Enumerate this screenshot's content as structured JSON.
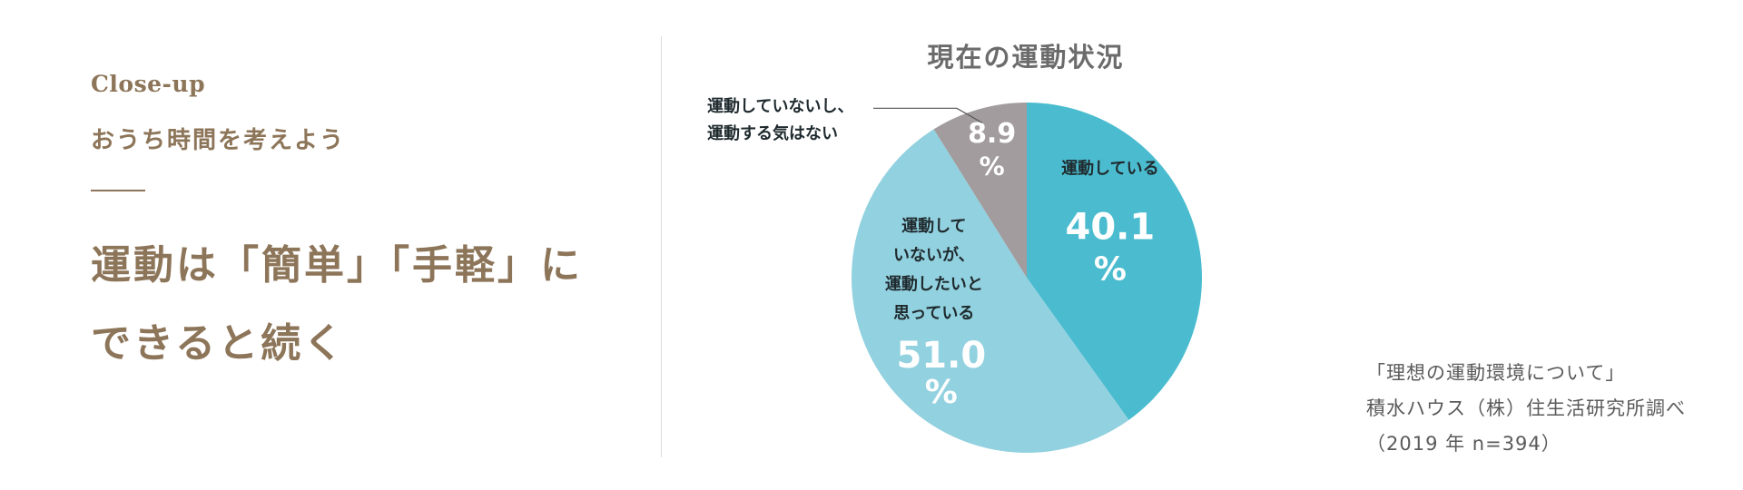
{
  "left": {
    "eyebrow": "Close-up",
    "subtitle": "おうち時間を考えよう",
    "headline_line1": "運動は「簡単」「手軽」に",
    "headline_line2": "できると続く"
  },
  "source": {
    "line1": "「理想の運動環境について」",
    "line2": "積水ハウス（株）住生活研究所調べ",
    "line3": "（2019 年 n=394）"
  },
  "chart_data": {
    "type": "pie",
    "title": "現在の運動状況",
    "start": "12 o'clock, clockwise",
    "slices": [
      {
        "label_lines": [
          "運動している"
        ],
        "value": 40.1,
        "value_text": "40.1",
        "unit": "%",
        "color": "#4bbccf"
      },
      {
        "label_lines": [
          "運動して",
          "いないが、",
          "運動したいと",
          "思っている"
        ],
        "value": 51.0,
        "value_text": "51.0",
        "unit": "%",
        "color": "#92d1df"
      },
      {
        "label_lines": [
          "運動していないし、",
          "運動する気はない"
        ],
        "value": 8.9,
        "value_text": "8.9",
        "unit": "%",
        "color": "#a29c9e"
      }
    ]
  }
}
